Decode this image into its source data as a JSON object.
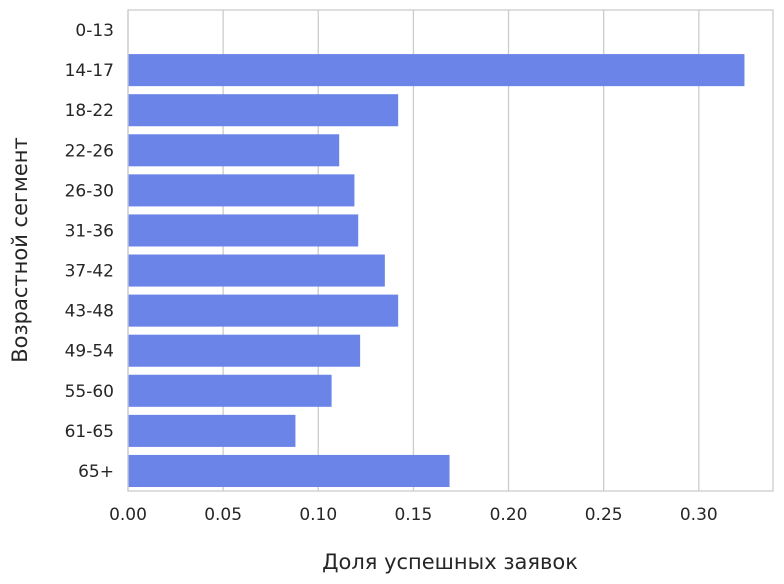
{
  "chart_data": {
    "type": "bar",
    "orientation": "horizontal",
    "categories": [
      "0-13",
      "14-17",
      "18-22",
      "22-26",
      "26-30",
      "31-36",
      "37-42",
      "43-48",
      "49-54",
      "55-60",
      "61-65",
      "65+"
    ],
    "values": [
      0.0,
      0.324,
      0.142,
      0.111,
      0.119,
      0.121,
      0.135,
      0.142,
      0.122,
      0.107,
      0.088,
      0.169
    ],
    "xlabel": "Доля успешных заявок",
    "ylabel": "Возрастной сегмент",
    "xlim": [
      0.0,
      0.339
    ],
    "xticks": [
      0.0,
      0.05,
      0.1,
      0.15,
      0.2,
      0.25,
      0.3
    ],
    "xtick_labels": [
      "0.00",
      "0.05",
      "0.10",
      "0.15",
      "0.20",
      "0.25",
      "0.30"
    ],
    "grid": "vertical",
    "bar_color": "#6b84e8",
    "grid_color": "#cccccc",
    "spine_color": "#cccccc",
    "text_color": "#262626"
  }
}
